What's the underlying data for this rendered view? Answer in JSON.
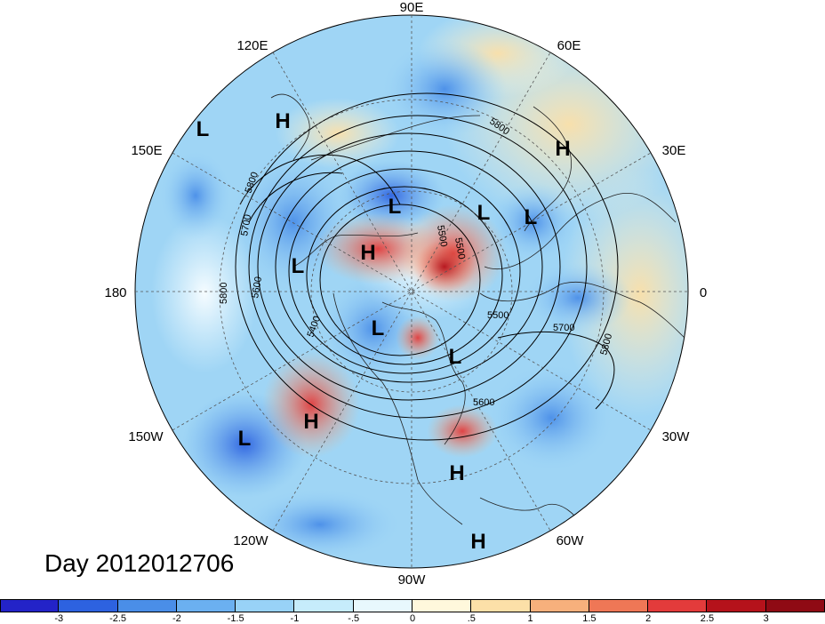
{
  "title": "Day 2012012706",
  "lon_labels": {
    "lon_90e": "90E",
    "lon_120e": "120E",
    "lon_60e": "60E",
    "lon_150e": "150E",
    "lon_30e": "30E",
    "lon_180": "180",
    "lon_0": "0",
    "lon_150w": "150W",
    "lon_30w": "30W",
    "lon_120w": "120W",
    "lon_60w": "60W",
    "lon_90w": "90W"
  },
  "pressure_centers": [
    {
      "type": "L"
    },
    {
      "type": "H"
    },
    {
      "type": "H"
    },
    {
      "type": "L"
    },
    {
      "type": "L"
    },
    {
      "type": "L"
    },
    {
      "type": "H"
    },
    {
      "type": "L"
    },
    {
      "type": "L"
    },
    {
      "type": "L"
    },
    {
      "type": "H"
    },
    {
      "type": "L"
    },
    {
      "type": "H"
    },
    {
      "type": "H"
    }
  ],
  "contour_labels": [
    "5800",
    "5700",
    "5600",
    "5800",
    "5400",
    "5500",
    "5500",
    "5800",
    "5700",
    "5600",
    "5500",
    "5800"
  ],
  "colorbar": {
    "ticks": [
      "-3",
      "-2.5",
      "-2",
      "-1.5",
      "-1",
      "-.5",
      "0",
      ".5",
      "1",
      "1.5",
      "2",
      "2.5",
      "3"
    ],
    "colors": [
      "#2323c8",
      "#2d62e0",
      "#4a8ee8",
      "#6bb0f0",
      "#98d2f7",
      "#c6ecfb",
      "#e8f8fd",
      "#fff8dc",
      "#fce0a8",
      "#f7b07c",
      "#ef7756",
      "#e33b3b",
      "#b5121b",
      "#8f0a14"
    ]
  },
  "colors": {
    "ocean_fill": "#9fd5f5",
    "contour": "#000000",
    "coast": "#222222"
  }
}
